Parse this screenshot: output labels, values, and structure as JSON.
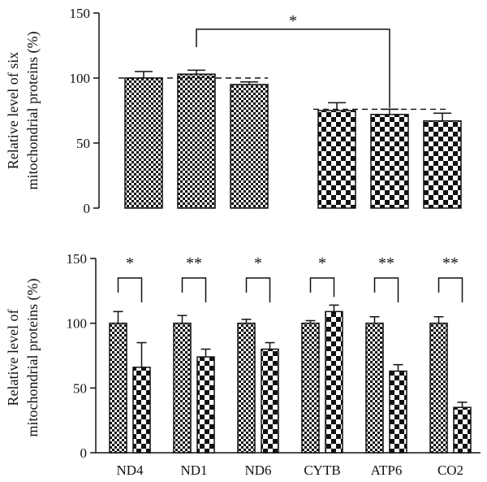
{
  "chart_data": [
    {
      "type": "bar",
      "ylabel": [
        "Relative level of six",
        "mitochondrial proteins (%)"
      ],
      "ylim": [
        0,
        150
      ],
      "yticks": [
        "0",
        "50",
        "100",
        "150"
      ],
      "series": [
        {
          "pattern": "fine-checker",
          "values": [
            100,
            103,
            95
          ],
          "errors": [
            5,
            3,
            2
          ],
          "reference_line": 100
        },
        {
          "pattern": "coarse-checker",
          "values": [
            75,
            72,
            67
          ],
          "errors": [
            6,
            4,
            6
          ],
          "reference_line": 76
        }
      ],
      "annotations": [
        {
          "text": "*",
          "between": "first-group-bar-2 and second-group-bar-2"
        }
      ]
    },
    {
      "type": "bar",
      "ylabel": [
        "Relative level of",
        "mitochondrial proteins (%)"
      ],
      "ylim": [
        0,
        150
      ],
      "yticks": [
        "0",
        "50",
        "100",
        "150"
      ],
      "categories": [
        "ND4",
        "ND1",
        "ND6",
        "CYTB",
        "ATP6",
        "CO2"
      ],
      "series": [
        {
          "pattern": "fine-checker",
          "values": [
            100,
            100,
            100,
            100,
            100,
            100
          ],
          "errors": [
            9,
            6,
            3,
            2,
            5,
            5
          ]
        },
        {
          "pattern": "coarse-checker",
          "values": [
            66,
            74,
            80,
            109,
            63,
            35
          ],
          "errors": [
            19,
            6,
            5,
            5,
            5,
            4
          ]
        }
      ],
      "significance": [
        "*",
        "**",
        "*",
        "*",
        "**",
        "**"
      ]
    }
  ]
}
